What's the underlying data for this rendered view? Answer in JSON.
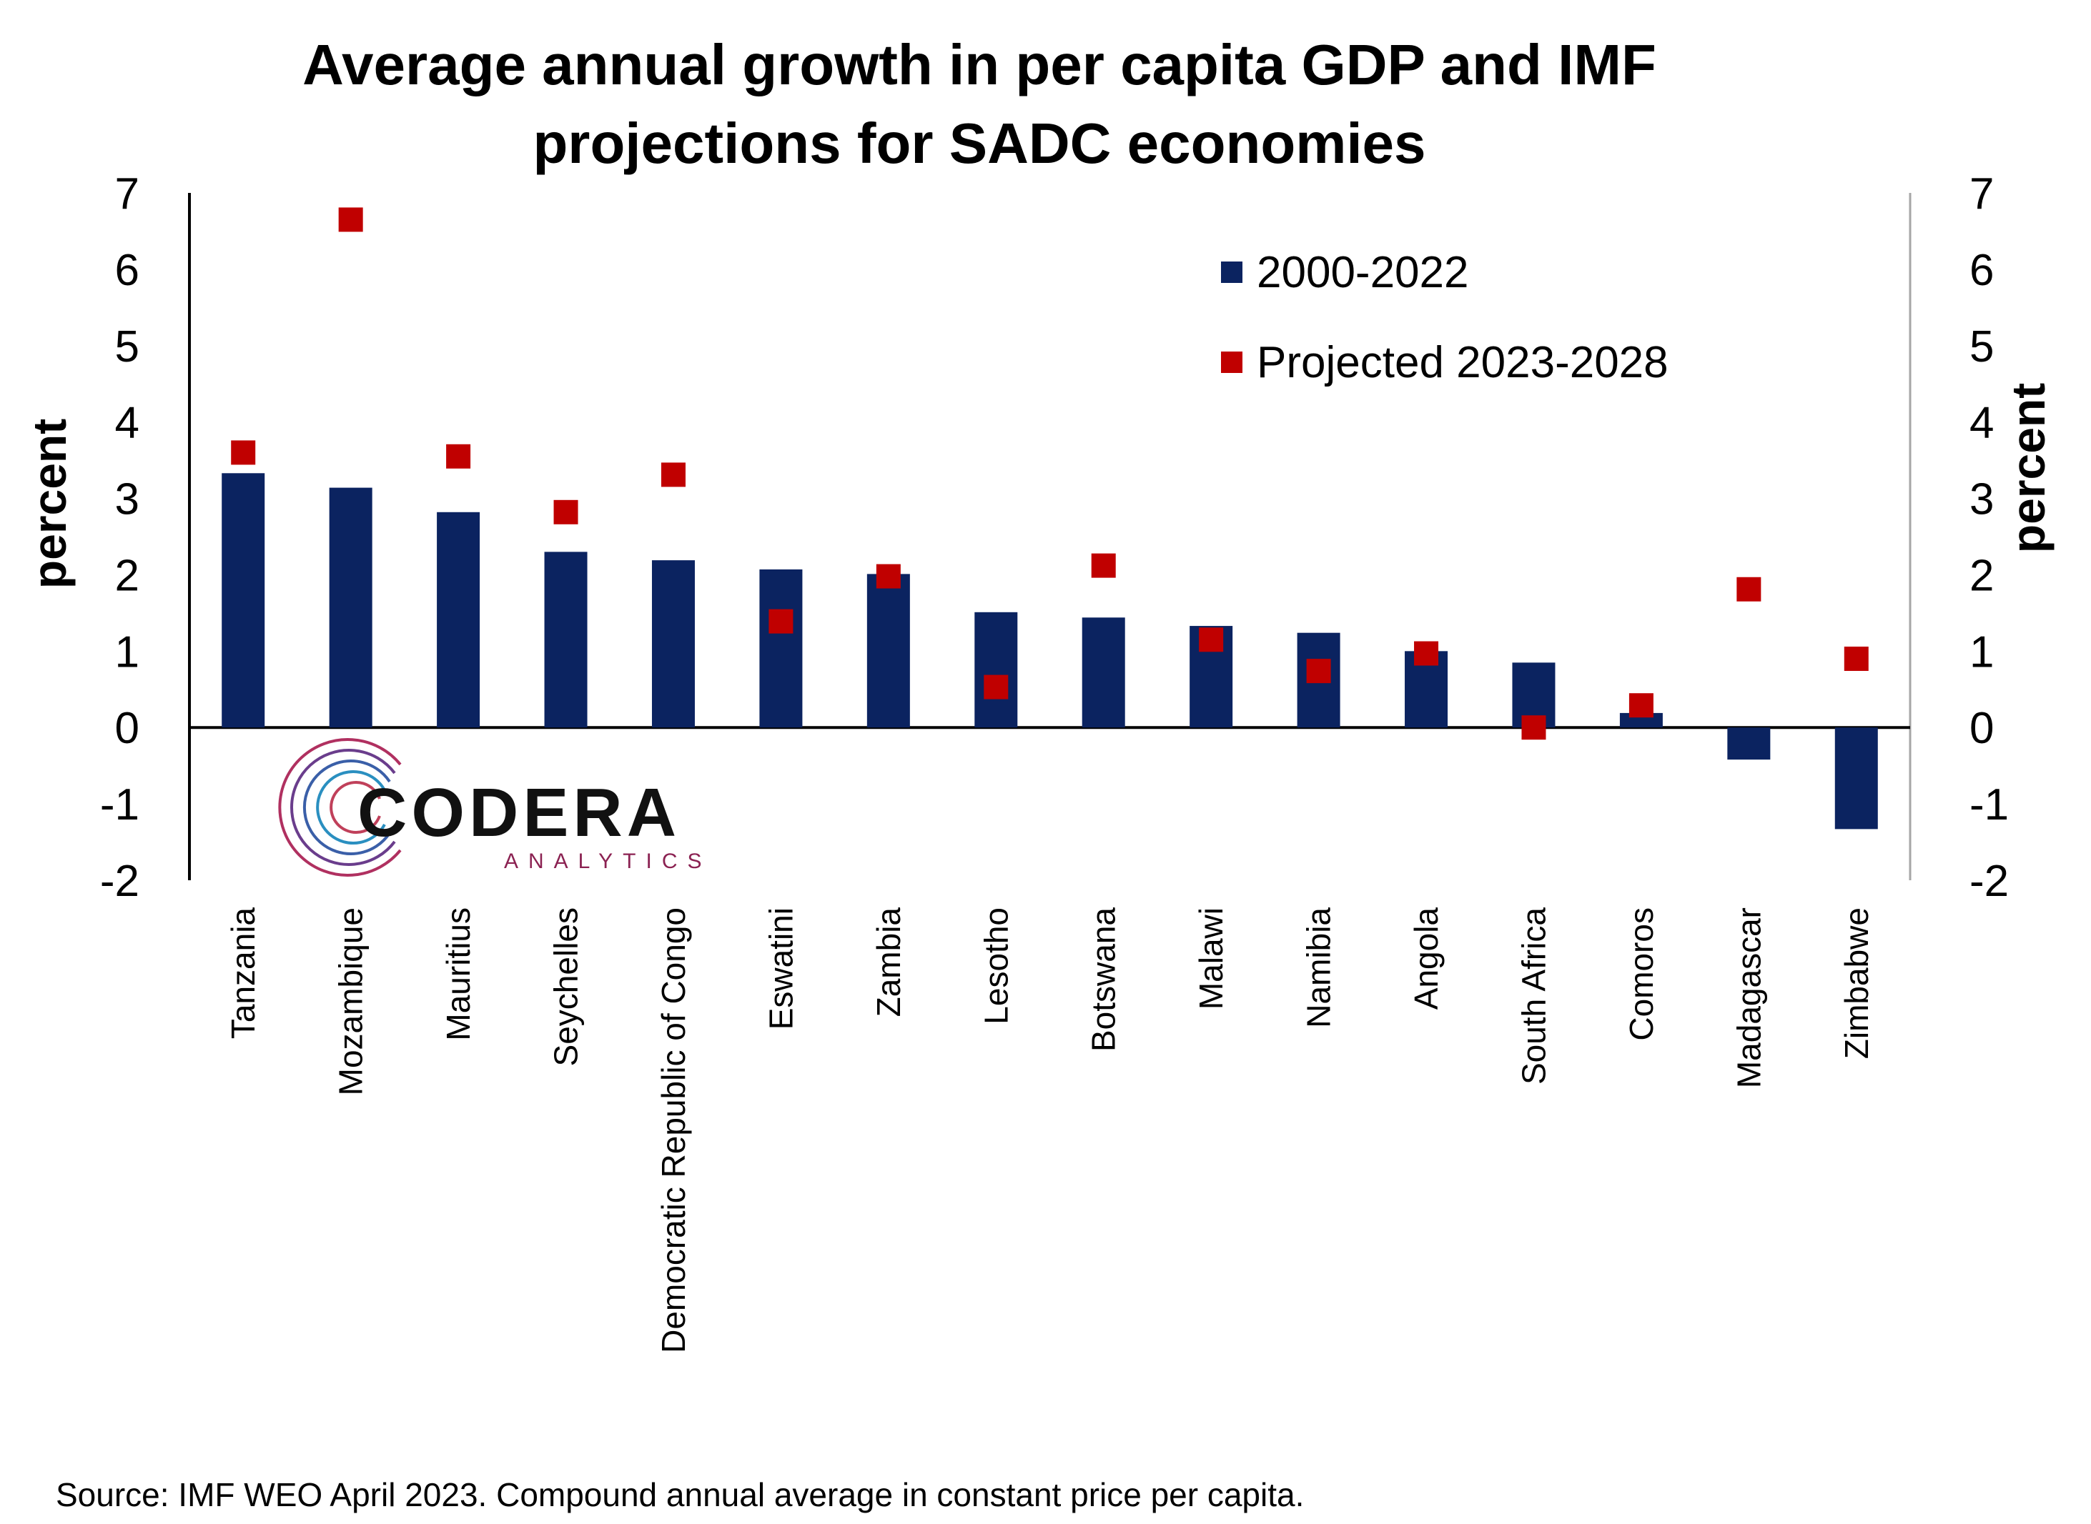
{
  "chart_data": {
    "type": "bar",
    "title": [
      "Average annual growth in per capita GDP and IMF",
      "projections for SADC economies"
    ],
    "ylabel_left": "percent",
    "ylabel_right": "percent",
    "ylim": [
      -2,
      7
    ],
    "yticks": [
      "7",
      "6",
      "5",
      "4",
      "3",
      "2",
      "1",
      "0",
      "-1",
      "-2"
    ],
    "categories": [
      "Tanzania",
      "Mozambique",
      "Mauritius",
      "Seychelles",
      "Democratic Republic of Congo",
      "Eswatini",
      "Zambia",
      "Lesotho",
      "Botswana",
      "Malawi",
      "Namibia",
      "Angola",
      "South Africa",
      "Comoros",
      "Madagascar",
      "Zimbabwe"
    ],
    "series": [
      {
        "name": "2000-2022",
        "kind": "bar",
        "color": "#0b2360",
        "values": [
          3.33,
          3.14,
          2.82,
          2.3,
          2.19,
          2.07,
          2.01,
          1.51,
          1.44,
          1.33,
          1.24,
          1.0,
          0.85,
          0.19,
          -0.42,
          -1.33
        ]
      },
      {
        "name": "Projected 2023-2028",
        "kind": "marker",
        "color": "#c00000",
        "values": [
          3.6,
          6.65,
          3.55,
          2.82,
          3.31,
          1.39,
          1.98,
          0.53,
          2.12,
          1.15,
          0.74,
          0.97,
          0.0,
          0.29,
          1.81,
          0.9
        ]
      }
    ],
    "grid": false,
    "legend_position": "top-right"
  },
  "source_note": "Source: IMF WEO April 2023. Compound annual average in constant price per capita.",
  "logo": {
    "main": "CODERA",
    "sub": "ANALYTICS"
  },
  "colors": {
    "bar": "#0b2360",
    "marker": "#c00000",
    "axis": "#000000",
    "right_axis": "#a6a6a6"
  }
}
